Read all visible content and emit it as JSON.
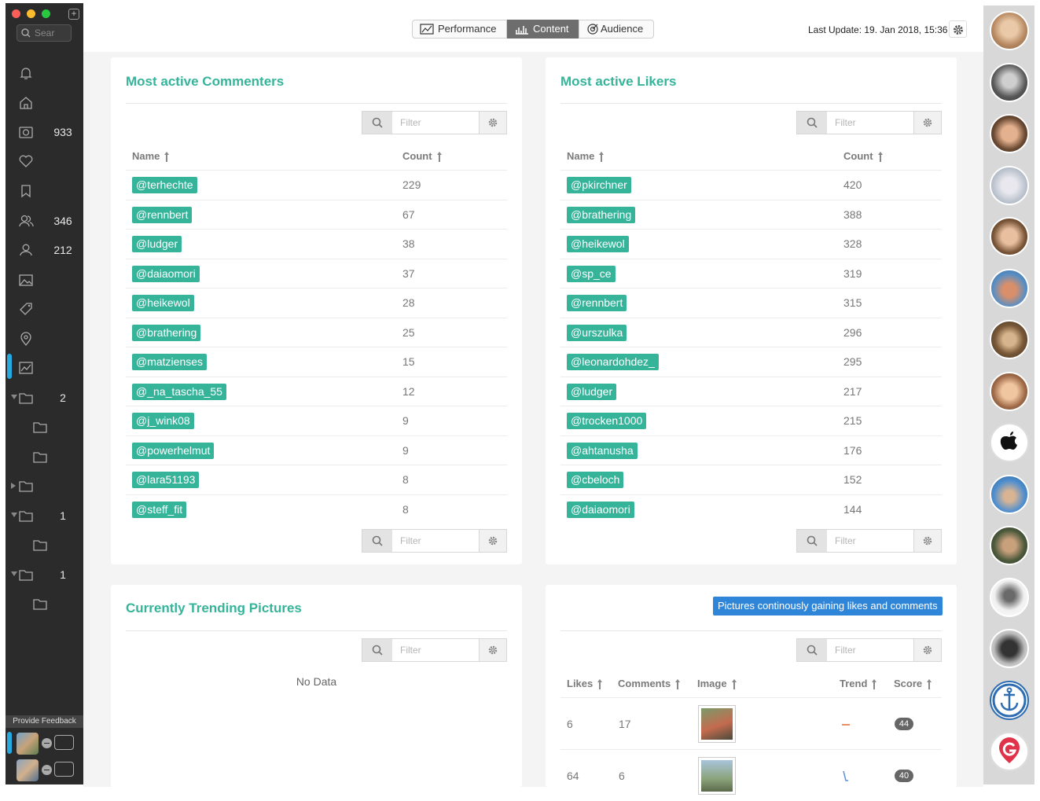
{
  "sidebar": {
    "search_placeholder": "Sear",
    "counts": {
      "photos": "933",
      "followers": "346",
      "following": "212",
      "folder1": "2",
      "folder3": "1",
      "folder4": "1"
    },
    "feedback": "Provide Feedback"
  },
  "header": {
    "tabs": [
      {
        "label": "Performance",
        "icon": "chart-line-icon",
        "active": false
      },
      {
        "label": "Content",
        "icon": "bar-chart-icon",
        "active": true
      },
      {
        "label": "Audience",
        "icon": "target-icon",
        "active": false
      }
    ],
    "last_update": "Last Update: 19. Jan 2018, 15:36"
  },
  "commenters": {
    "title": "Most active Commenters",
    "filter_placeholder": "Filter",
    "col_name": "Name",
    "col_count": "Count",
    "rows": [
      {
        "name": "@terhechte",
        "count": "229"
      },
      {
        "name": "@rennbert",
        "count": "67"
      },
      {
        "name": "@ludger",
        "count": "38"
      },
      {
        "name": "@daiaomori",
        "count": "37"
      },
      {
        "name": "@heikewol",
        "count": "28"
      },
      {
        "name": "@brathering",
        "count": "25"
      },
      {
        "name": "@matzienses",
        "count": "15"
      },
      {
        "name": "@_na_tascha_55",
        "count": "12"
      },
      {
        "name": "@j_wink08",
        "count": "9"
      },
      {
        "name": "@powerhelmut",
        "count": "9"
      },
      {
        "name": "@lara51193",
        "count": "8"
      },
      {
        "name": "@steff_fit",
        "count": "8"
      }
    ]
  },
  "likers": {
    "title": "Most active Likers",
    "filter_placeholder": "Filter",
    "col_name": "Name",
    "col_count": "Count",
    "rows": [
      {
        "name": "@pkirchner",
        "count": "420"
      },
      {
        "name": "@brathering",
        "count": "388"
      },
      {
        "name": "@heikewol",
        "count": "328"
      },
      {
        "name": "@sp_ce",
        "count": "319"
      },
      {
        "name": "@rennbert",
        "count": "315"
      },
      {
        "name": "@urszulka",
        "count": "296"
      },
      {
        "name": "@leonardohdez_",
        "count": "295"
      },
      {
        "name": "@ludger",
        "count": "217"
      },
      {
        "name": "@trocken1000",
        "count": "215"
      },
      {
        "name": "@ahtanusha",
        "count": "176"
      },
      {
        "name": "@cbeloch",
        "count": "152"
      },
      {
        "name": "@daiaomori",
        "count": "144"
      }
    ]
  },
  "trending": {
    "title": "Currently Trending Pictures",
    "filter_placeholder": "Filter",
    "empty": "No Data"
  },
  "gaining": {
    "badge": "Pictures continously gaining likes and comments",
    "filter_placeholder": "Filter",
    "col_likes": "Likes",
    "col_comments": "Comments",
    "col_image": "Image",
    "col_trend": "Trend",
    "col_score": "Score",
    "rows": [
      {
        "likes": "6",
        "comments": "17",
        "score": "44"
      },
      {
        "likes": "64",
        "comments": "6",
        "score": "40"
      }
    ]
  },
  "colors": {
    "accent": "#35b49a",
    "blue_badge": "#2f86d8",
    "sidebar": "#2b2b2b",
    "selection": "#25a9e0"
  }
}
